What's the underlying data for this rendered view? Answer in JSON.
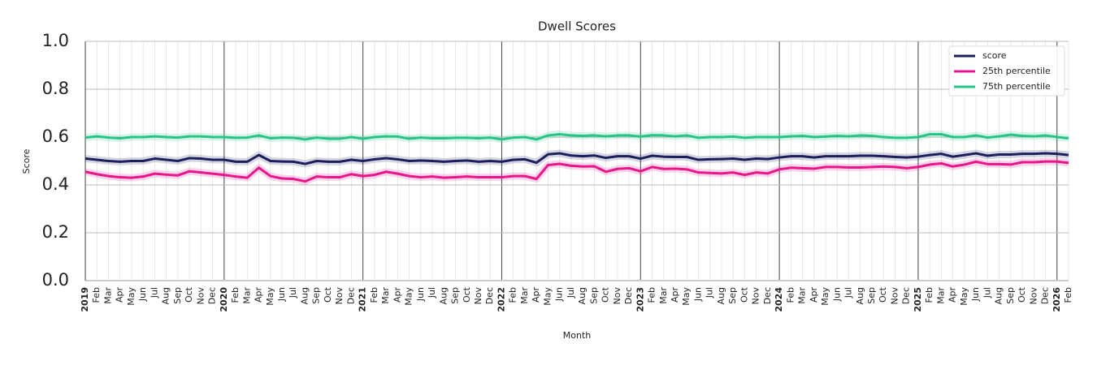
{
  "chart_data": {
    "type": "line",
    "title": "Dwell Scores",
    "x_label": "Month",
    "y_label": "Score",
    "categories": [
      "2019",
      "Feb",
      "Mar",
      "Apr",
      "May",
      "Jun",
      "Jul",
      "Aug",
      "Sep",
      "Oct",
      "Nov",
      "Dec",
      "2020",
      "Feb",
      "Mar",
      "Apr",
      "May",
      "Jun",
      "Jul",
      "Aug",
      "Sep",
      "Oct",
      "Nov",
      "Dec",
      "2021",
      "Feb",
      "Mar",
      "Apr",
      "May",
      "Jun",
      "Jul",
      "Aug",
      "Sep",
      "Oct",
      "Nov",
      "Dec",
      "2022",
      "Feb",
      "Mar",
      "Apr",
      "May",
      "Jun",
      "Jul",
      "Aug",
      "Sep",
      "Oct",
      "Nov",
      "Dec",
      "2023",
      "Feb",
      "Mar",
      "Apr",
      "May",
      "Jun",
      "Jul",
      "Aug",
      "Sep",
      "Oct",
      "Nov",
      "Dec",
      "2024",
      "Feb",
      "Mar",
      "Apr",
      "May",
      "Jun",
      "Jul",
      "Aug",
      "Sep",
      "Oct",
      "Nov",
      "Dec",
      "2025",
      "Feb",
      "Mar",
      "Apr",
      "May",
      "Jun",
      "Jul",
      "Aug",
      "Sep",
      "Oct",
      "Nov",
      "Dec",
      "2026",
      "Feb"
    ],
    "series": [
      {
        "name": "score",
        "color": "#1b1f5c",
        "values": [
          0.51,
          0.505,
          0.5,
          0.497,
          0.5,
          0.5,
          0.51,
          0.505,
          0.5,
          0.512,
          0.51,
          0.505,
          0.505,
          0.497,
          0.497,
          0.525,
          0.5,
          0.498,
          0.497,
          0.488,
          0.5,
          0.497,
          0.497,
          0.505,
          0.5,
          0.507,
          0.512,
          0.507,
          0.5,
          0.502,
          0.5,
          0.497,
          0.5,
          0.502,
          0.497,
          0.5,
          0.497,
          0.505,
          0.507,
          0.493,
          0.528,
          0.532,
          0.523,
          0.52,
          0.523,
          0.513,
          0.52,
          0.52,
          0.51,
          0.522,
          0.518,
          0.517,
          0.517,
          0.505,
          0.507,
          0.508,
          0.51,
          0.505,
          0.51,
          0.508,
          0.515,
          0.52,
          0.52,
          0.515,
          0.52,
          0.52,
          0.52,
          0.522,
          0.522,
          0.52,
          0.517,
          0.515,
          0.518,
          0.525,
          0.53,
          0.518,
          0.525,
          0.532,
          0.522,
          0.527,
          0.527,
          0.53,
          0.53,
          0.532,
          0.53,
          0.525
        ]
      },
      {
        "name": "25th percentile",
        "color": "#e8168a",
        "values": [
          0.455,
          0.445,
          0.437,
          0.432,
          0.43,
          0.435,
          0.447,
          0.443,
          0.44,
          0.457,
          0.452,
          0.447,
          0.442,
          0.435,
          0.43,
          0.472,
          0.437,
          0.427,
          0.425,
          0.415,
          0.435,
          0.432,
          0.432,
          0.445,
          0.437,
          0.442,
          0.455,
          0.447,
          0.437,
          0.432,
          0.435,
          0.43,
          0.432,
          0.435,
          0.432,
          0.432,
          0.432,
          0.437,
          0.437,
          0.425,
          0.483,
          0.488,
          0.48,
          0.477,
          0.478,
          0.455,
          0.467,
          0.47,
          0.457,
          0.475,
          0.467,
          0.468,
          0.465,
          0.452,
          0.45,
          0.448,
          0.452,
          0.442,
          0.452,
          0.448,
          0.465,
          0.472,
          0.47,
          0.468,
          0.475,
          0.475,
          0.473,
          0.473,
          0.475,
          0.477,
          0.475,
          0.47,
          0.475,
          0.485,
          0.49,
          0.477,
          0.485,
          0.497,
          0.487,
          0.487,
          0.485,
          0.495,
          0.495,
          0.498,
          0.498,
          0.492
        ]
      },
      {
        "name": "75th percentile",
        "color": "#27c487",
        "values": [
          0.598,
          0.603,
          0.598,
          0.595,
          0.6,
          0.6,
          0.603,
          0.6,
          0.598,
          0.603,
          0.603,
          0.6,
          0.6,
          0.597,
          0.598,
          0.607,
          0.595,
          0.598,
          0.597,
          0.59,
          0.598,
          0.593,
          0.593,
          0.6,
          0.593,
          0.6,
          0.603,
          0.602,
          0.593,
          0.598,
          0.595,
          0.595,
          0.597,
          0.597,
          0.595,
          0.598,
          0.59,
          0.598,
          0.6,
          0.59,
          0.607,
          0.612,
          0.607,
          0.605,
          0.607,
          0.603,
          0.607,
          0.607,
          0.602,
          0.608,
          0.607,
          0.603,
          0.607,
          0.597,
          0.6,
          0.6,
          0.602,
          0.597,
          0.6,
          0.6,
          0.6,
          0.603,
          0.605,
          0.6,
          0.602,
          0.605,
          0.603,
          0.607,
          0.605,
          0.6,
          0.597,
          0.597,
          0.6,
          0.612,
          0.612,
          0.6,
          0.6,
          0.607,
          0.598,
          0.603,
          0.61,
          0.605,
          0.603,
          0.607,
          0.6,
          0.595
        ]
      }
    ],
    "ylim": [
      0,
      1
    ],
    "yticks": [
      {
        "value": 0,
        "label": "0.0"
      },
      0.2,
      0.4,
      0.6,
      0.8,
      {
        "value": 1,
        "label": "1.0"
      }
    ],
    "grid": true,
    "legend": "upper right"
  }
}
